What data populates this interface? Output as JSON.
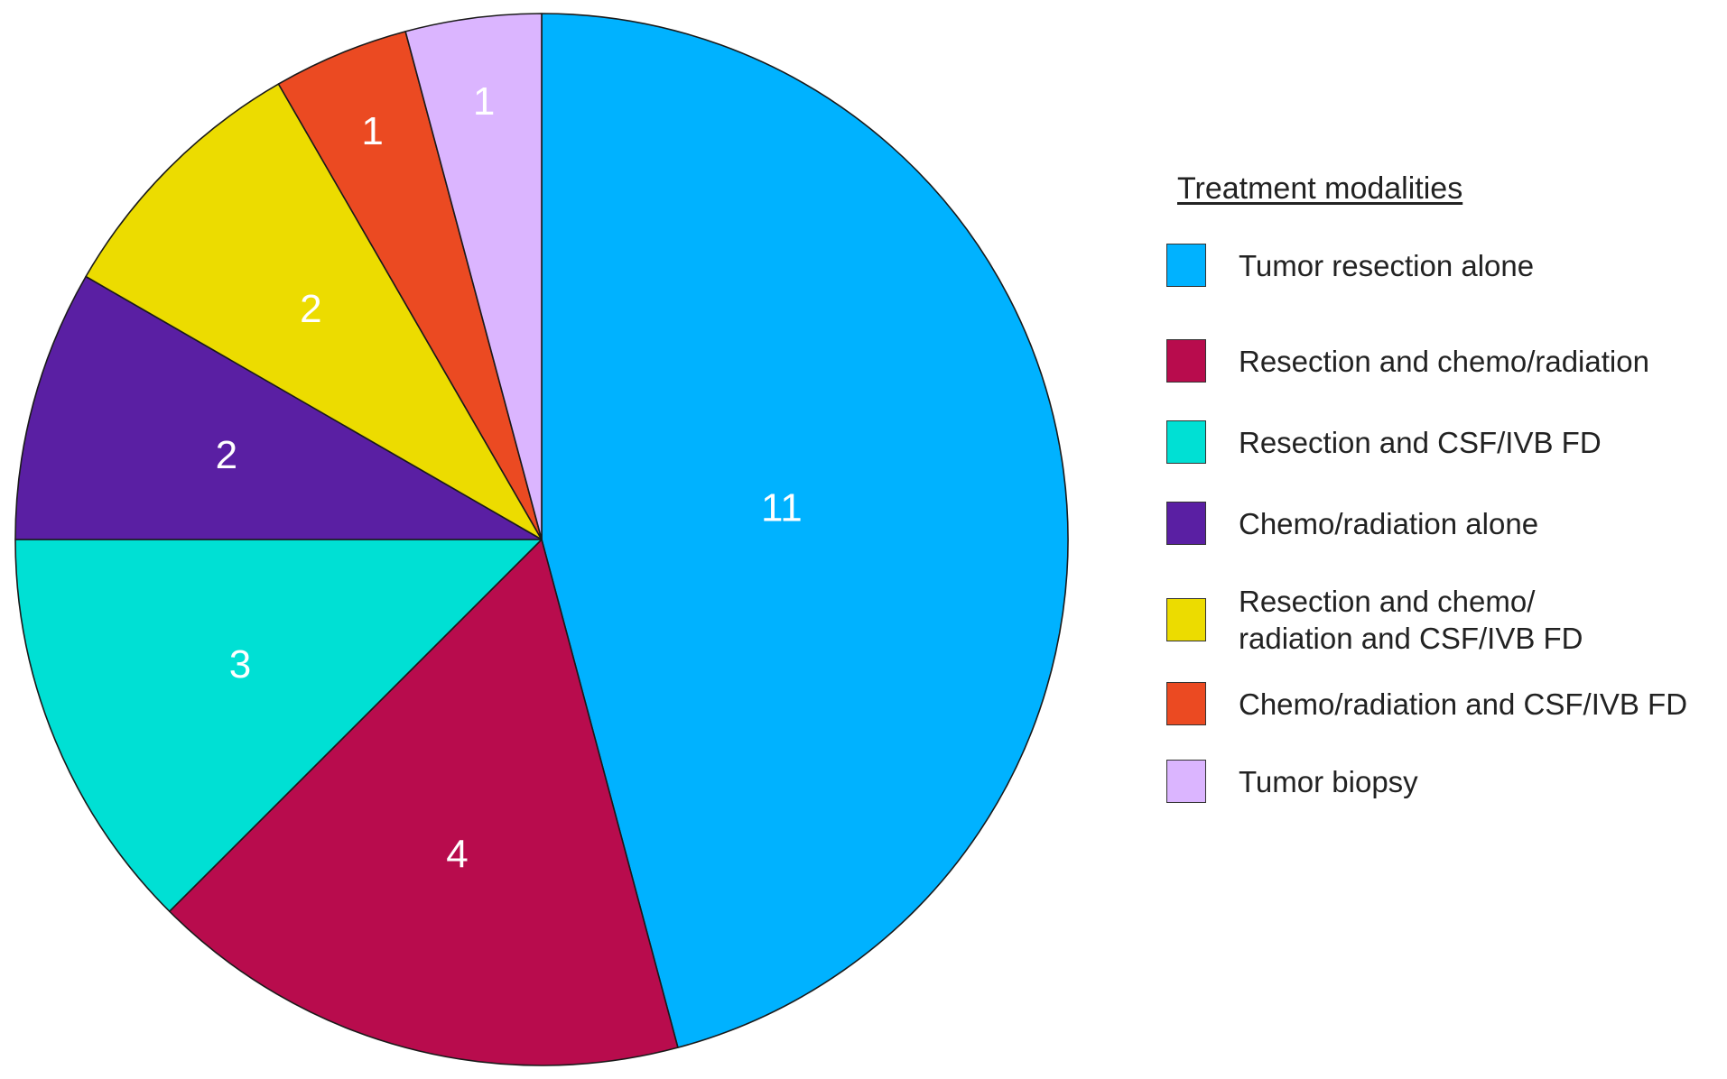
{
  "chart_data": {
    "type": "pie",
    "title": "",
    "legend_title": "Treatment modalities",
    "legend_placement": "right",
    "slices": [
      {
        "label": "Tumor resection alone",
        "value": 11,
        "value_label": "11",
        "color": "#00b2ff"
      },
      {
        "label": "Resection and chemo/radiation",
        "value": 4,
        "value_label": "4",
        "color": "#b80c4d"
      },
      {
        "label": "Resection and CSF/IVB FD",
        "value": 3,
        "value_label": "3",
        "color": "#00e0d4"
      },
      {
        "label": "Chemo/radiation alone",
        "value": 2,
        "value_label": "2",
        "color": "#5a1fa3"
      },
      {
        "label": "Resection and chemo/\nradiation and CSF/IVB FD",
        "value": 2,
        "value_label": "2",
        "color": "#ecdc00"
      },
      {
        "label": "Chemo/radiation and CSF/IVB FD",
        "value": 1,
        "value_label": "1",
        "color": "#eb4a22"
      },
      {
        "label": "Tumor biopsy",
        "value": 1,
        "value_label": "1",
        "color": "#dbb5ff"
      }
    ]
  }
}
